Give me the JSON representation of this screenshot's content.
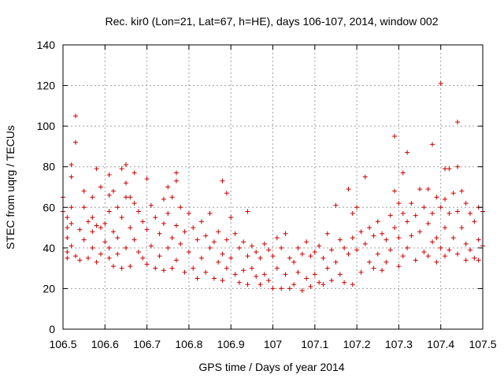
{
  "chart_data": {
    "type": "scatter",
    "title": "Rec. kir0 (Lon=21, Lat=67, h=HE), days 106-107, 2014, window 002",
    "xlabel": "GPS time / Days of year 2014",
    "ylabel": "STEC from uqrg / TECUs",
    "xlim": [
      106.5,
      107.5
    ],
    "ylim": [
      0,
      140
    ],
    "xticks": [
      106.5,
      106.6,
      106.7,
      106.8,
      106.9,
      107.0,
      107.1,
      107.2,
      107.3,
      107.4,
      107.5
    ],
    "xtick_labels": [
      "106.5",
      "106.6",
      "106.7",
      "106.8",
      "106.9",
      "107",
      "107.1",
      "107.2",
      "107.3",
      "107.4",
      "107.5"
    ],
    "yticks": [
      0,
      20,
      40,
      60,
      80,
      100,
      120,
      140
    ],
    "ytick_labels": [
      "0",
      "20",
      "40",
      "60",
      "80",
      "100",
      "120",
      "140"
    ],
    "grid": true,
    "marker": "+",
    "marker_color": "#cc0000",
    "series": [
      {
        "points": [
          [
            106.5,
            65
          ],
          [
            106.5,
            58
          ],
          [
            106.51,
            55
          ],
          [
            106.51,
            50
          ],
          [
            106.51,
            45
          ],
          [
            106.51,
            38
          ],
          [
            106.51,
            35
          ],
          [
            106.52,
            81
          ],
          [
            106.52,
            75
          ],
          [
            106.52,
            60
          ],
          [
            106.52,
            52
          ],
          [
            106.52,
            41
          ],
          [
            106.53,
            36
          ],
          [
            106.53,
            105
          ],
          [
            106.53,
            92
          ],
          [
            106.54,
            49
          ],
          [
            106.54,
            34
          ],
          [
            106.55,
            68
          ],
          [
            106.55,
            60
          ],
          [
            106.55,
            44
          ],
          [
            106.56,
            53
          ],
          [
            106.56,
            35
          ],
          [
            106.57,
            65
          ],
          [
            106.57,
            55
          ],
          [
            106.57,
            48
          ],
          [
            106.57,
            40
          ],
          [
            106.58,
            79
          ],
          [
            106.58,
            51
          ],
          [
            106.58,
            33
          ],
          [
            106.59,
            70
          ],
          [
            106.59,
            50
          ],
          [
            106.59,
            37
          ],
          [
            106.6,
            52
          ],
          [
            106.6,
            43
          ],
          [
            106.61,
            76
          ],
          [
            106.61,
            66
          ],
          [
            106.61,
            58
          ],
          [
            106.61,
            40
          ],
          [
            106.61,
            35
          ],
          [
            106.62,
            68
          ],
          [
            106.62,
            48
          ],
          [
            106.62,
            31
          ],
          [
            106.63,
            60
          ],
          [
            106.63,
            45
          ],
          [
            106.63,
            37
          ],
          [
            106.64,
            79
          ],
          [
            106.64,
            55
          ],
          [
            106.64,
            30
          ],
          [
            106.65,
            81
          ],
          [
            106.65,
            72
          ],
          [
            106.65,
            65
          ],
          [
            106.65,
            40
          ],
          [
            106.66,
            65
          ],
          [
            106.66,
            50
          ],
          [
            106.66,
            31
          ],
          [
            106.67,
            77
          ],
          [
            106.67,
            62
          ],
          [
            106.67,
            44
          ],
          [
            106.68,
            58
          ],
          [
            106.68,
            38
          ],
          [
            106.69,
            53
          ],
          [
            106.69,
            35
          ],
          [
            106.7,
            74
          ],
          [
            106.7,
            49
          ],
          [
            106.7,
            32
          ],
          [
            106.71,
            61
          ],
          [
            106.71,
            41
          ],
          [
            106.72,
            55
          ],
          [
            106.72,
            30
          ],
          [
            106.73,
            47
          ],
          [
            106.73,
            36
          ],
          [
            106.74,
            64
          ],
          [
            106.74,
            52
          ],
          [
            106.74,
            29
          ],
          [
            106.75,
            70
          ],
          [
            106.75,
            57
          ],
          [
            106.75,
            40
          ],
          [
            106.76,
            65
          ],
          [
            106.76,
            45
          ],
          [
            106.76,
            30
          ],
          [
            106.77,
            77
          ],
          [
            106.77,
            73
          ],
          [
            106.77,
            51
          ],
          [
            106.77,
            34
          ],
          [
            106.78,
            60
          ],
          [
            106.78,
            42
          ],
          [
            106.79,
            48
          ],
          [
            106.79,
            28
          ],
          [
            106.8,
            57
          ],
          [
            106.8,
            38
          ],
          [
            106.81,
            50
          ],
          [
            106.81,
            30
          ],
          [
            106.82,
            44
          ],
          [
            106.82,
            25
          ],
          [
            106.83,
            53
          ],
          [
            106.83,
            35
          ],
          [
            106.84,
            46
          ],
          [
            106.84,
            28
          ],
          [
            106.85,
            57
          ],
          [
            106.85,
            40
          ],
          [
            106.86,
            43
          ],
          [
            106.86,
            25
          ],
          [
            106.87,
            48
          ],
          [
            106.87,
            33
          ],
          [
            106.88,
            73
          ],
          [
            106.88,
            37
          ],
          [
            106.88,
            24
          ],
          [
            106.89,
            67
          ],
          [
            106.89,
            44
          ],
          [
            106.89,
            30
          ],
          [
            106.9,
            55
          ],
          [
            106.9,
            35
          ],
          [
            106.91,
            47
          ],
          [
            106.91,
            27
          ],
          [
            106.92,
            40
          ],
          [
            106.92,
            23
          ],
          [
            106.93,
            43
          ],
          [
            106.93,
            29
          ],
          [
            106.94,
            58
          ],
          [
            106.94,
            36
          ],
          [
            106.94,
            22
          ],
          [
            106.95,
            41
          ],
          [
            106.95,
            30
          ],
          [
            106.96,
            38
          ],
          [
            106.96,
            26
          ],
          [
            106.97,
            35
          ],
          [
            106.97,
            22
          ],
          [
            106.98,
            42
          ],
          [
            106.98,
            27
          ],
          [
            106.99,
            39
          ],
          [
            106.99,
            24
          ],
          [
            107.0,
            36
          ],
          [
            107.0,
            20
          ],
          [
            107.01,
            45
          ],
          [
            107.01,
            30
          ],
          [
            107.02,
            40
          ],
          [
            107.02,
            20
          ],
          [
            107.03,
            47
          ],
          [
            107.03,
            27
          ],
          [
            107.04,
            35
          ],
          [
            107.04,
            20
          ],
          [
            107.05,
            33
          ],
          [
            107.05,
            22
          ],
          [
            107.06,
            40
          ],
          [
            107.06,
            28
          ],
          [
            107.07,
            37
          ],
          [
            107.07,
            19
          ],
          [
            107.08,
            43
          ],
          [
            107.08,
            25
          ],
          [
            107.09,
            36
          ],
          [
            107.09,
            21
          ],
          [
            107.1,
            38
          ],
          [
            107.1,
            27
          ],
          [
            107.11,
            41
          ],
          [
            107.11,
            23
          ],
          [
            107.12,
            35
          ],
          [
            107.12,
            22
          ],
          [
            107.13,
            47
          ],
          [
            107.13,
            30
          ],
          [
            107.14,
            39
          ],
          [
            107.14,
            24
          ],
          [
            107.15,
            61
          ],
          [
            107.15,
            33
          ],
          [
            107.16,
            44
          ],
          [
            107.16,
            27
          ],
          [
            107.17,
            40
          ],
          [
            107.17,
            23
          ],
          [
            107.18,
            69
          ],
          [
            107.18,
            37
          ],
          [
            107.19,
            57
          ],
          [
            107.19,
            45
          ],
          [
            107.19,
            22
          ],
          [
            107.2,
            60
          ],
          [
            107.2,
            39
          ],
          [
            107.21,
            48
          ],
          [
            107.21,
            28
          ],
          [
            107.22,
            75
          ],
          [
            107.22,
            42
          ],
          [
            107.23,
            50
          ],
          [
            107.23,
            33
          ],
          [
            107.24,
            46
          ],
          [
            107.24,
            30
          ],
          [
            107.25,
            53
          ],
          [
            107.25,
            37
          ],
          [
            107.26,
            47
          ],
          [
            107.26,
            29
          ],
          [
            107.27,
            44
          ],
          [
            107.27,
            33
          ],
          [
            107.28,
            56
          ],
          [
            107.28,
            39
          ],
          [
            107.29,
            95
          ],
          [
            107.29,
            68
          ],
          [
            107.29,
            50
          ],
          [
            107.3,
            62
          ],
          [
            107.3,
            45
          ],
          [
            107.3,
            31
          ],
          [
            107.31,
            77
          ],
          [
            107.31,
            57
          ],
          [
            107.31,
            36
          ],
          [
            107.32,
            87
          ],
          [
            107.32,
            53
          ],
          [
            107.32,
            40
          ],
          [
            107.33,
            62
          ],
          [
            107.33,
            46
          ],
          [
            107.34,
            56
          ],
          [
            107.34,
            34
          ],
          [
            107.35,
            69
          ],
          [
            107.35,
            48
          ],
          [
            107.36,
            60
          ],
          [
            107.36,
            38
          ],
          [
            107.37,
            69
          ],
          [
            107.37,
            52
          ],
          [
            107.37,
            36
          ],
          [
            107.38,
            91
          ],
          [
            107.38,
            57
          ],
          [
            107.38,
            43
          ],
          [
            107.39,
            65
          ],
          [
            107.39,
            45
          ],
          [
            107.39,
            33
          ],
          [
            107.4,
            121
          ],
          [
            107.4,
            60
          ],
          [
            107.4,
            40
          ],
          [
            107.41,
            79
          ],
          [
            107.41,
            64
          ],
          [
            107.41,
            50
          ],
          [
            107.41,
            36
          ],
          [
            107.42,
            79
          ],
          [
            107.42,
            57
          ],
          [
            107.42,
            39
          ],
          [
            107.43,
            67
          ],
          [
            107.43,
            45
          ],
          [
            107.44,
            102
          ],
          [
            107.44,
            80
          ],
          [
            107.44,
            58
          ],
          [
            107.44,
            37
          ],
          [
            107.45,
            68
          ],
          [
            107.45,
            50
          ],
          [
            107.46,
            62
          ],
          [
            107.46,
            42
          ],
          [
            107.46,
            34
          ],
          [
            107.47,
            57
          ],
          [
            107.47,
            39
          ],
          [
            107.48,
            53
          ],
          [
            107.48,
            35
          ],
          [
            107.49,
            60
          ],
          [
            107.49,
            44
          ],
          [
            107.49,
            34
          ],
          [
            107.5,
            58
          ],
          [
            107.5,
            41
          ]
        ]
      }
    ]
  }
}
